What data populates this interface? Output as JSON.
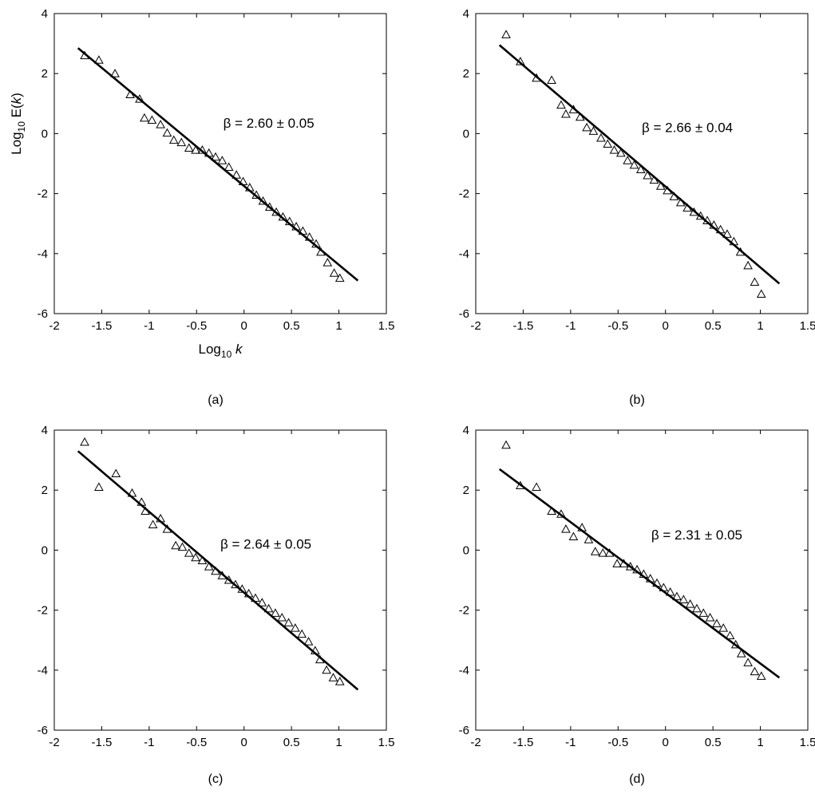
{
  "chart_data": [
    {
      "type": "scatter",
      "panel_label": "(a)",
      "annotation": "β = 2.60 ± 0.05",
      "xlabel": "Log10 k",
      "ylabel": "Log10 E(k)",
      "xlim": [
        -2,
        1.5
      ],
      "ylim": [
        -6,
        4
      ],
      "xticks": [
        "-2",
        "-1.5",
        "-1",
        "-0.5",
        "0",
        "0.5",
        "1",
        "1.5"
      ],
      "yticks": [
        "-6",
        "-4",
        "-2",
        "0",
        "2",
        "4"
      ],
      "grid": false,
      "fit_line": {
        "x": [
          -1.75,
          1.2
        ],
        "y": [
          2.85,
          -4.9
        ]
      },
      "points": {
        "x": [
          -1.68,
          -1.53,
          -1.36,
          -1.2,
          -1.1,
          -1.05,
          -0.97,
          -0.88,
          -0.81,
          -0.74,
          -0.66,
          -0.58,
          -0.51,
          -0.44,
          -0.37,
          -0.3,
          -0.23,
          -0.16,
          -0.08,
          -0.01,
          0.06,
          0.13,
          0.2,
          0.27,
          0.34,
          0.41,
          0.48,
          0.55,
          0.62,
          0.69,
          0.76,
          0.81,
          0.88,
          0.95,
          1.01
        ],
        "y": [
          2.6,
          2.45,
          2.0,
          1.3,
          1.15,
          0.52,
          0.45,
          0.3,
          0.02,
          -0.22,
          -0.3,
          -0.48,
          -0.55,
          -0.55,
          -0.65,
          -0.78,
          -0.9,
          -1.12,
          -1.38,
          -1.6,
          -1.8,
          -2.05,
          -2.25,
          -2.45,
          -2.62,
          -2.78,
          -2.93,
          -3.1,
          -3.25,
          -3.45,
          -3.68,
          -3.95,
          -4.3,
          -4.65,
          -4.82
        ]
      }
    },
    {
      "type": "scatter",
      "panel_label": "(b)",
      "annotation": "β = 2.66 ± 0.04",
      "xlabel": "",
      "ylabel": "",
      "xlim": [
        -2,
        1.5
      ],
      "ylim": [
        -6,
        4
      ],
      "xticks": [
        "-2",
        "-1.5",
        "-1",
        "-0.5",
        "0",
        "0.5",
        "1",
        "1.5"
      ],
      "yticks": [
        "-6",
        "-4",
        "-2",
        "0",
        "2",
        "4"
      ],
      "grid": false,
      "fit_line": {
        "x": [
          -1.75,
          1.2
        ],
        "y": [
          2.95,
          -5.0
        ]
      },
      "points": {
        "x": [
          -1.68,
          -1.53,
          -1.36,
          -1.2,
          -1.1,
          -1.05,
          -0.97,
          -0.9,
          -0.83,
          -0.76,
          -0.68,
          -0.61,
          -0.54,
          -0.47,
          -0.4,
          -0.33,
          -0.26,
          -0.19,
          -0.12,
          -0.05,
          0.02,
          0.09,
          0.16,
          0.23,
          0.3,
          0.37,
          0.44,
          0.51,
          0.58,
          0.65,
          0.72,
          0.79,
          0.87,
          0.94,
          1.01
        ],
        "y": [
          3.3,
          2.4,
          1.85,
          1.78,
          0.95,
          0.65,
          0.8,
          0.55,
          0.2,
          0.08,
          -0.15,
          -0.35,
          -0.55,
          -0.65,
          -0.9,
          -1.05,
          -1.2,
          -1.4,
          -1.55,
          -1.75,
          -1.9,
          -2.1,
          -2.3,
          -2.48,
          -2.62,
          -2.75,
          -2.9,
          -3.05,
          -3.2,
          -3.35,
          -3.6,
          -3.95,
          -4.4,
          -4.95,
          -5.35
        ]
      }
    },
    {
      "type": "scatter",
      "panel_label": "(c)",
      "annotation": "β = 2.64 ± 0.05",
      "xlabel": "",
      "ylabel": "",
      "xlim": [
        -2,
        1.5
      ],
      "ylim": [
        -6,
        4
      ],
      "xticks": [
        "-2",
        "-1.5",
        "-1",
        "-0.5",
        "0",
        "0.5",
        "1",
        "1.5"
      ],
      "yticks": [
        "-6",
        "-4",
        "-2",
        "0",
        "2",
        "4"
      ],
      "grid": false,
      "fit_line": {
        "x": [
          -1.75,
          1.2
        ],
        "y": [
          3.3,
          -4.65
        ]
      },
      "points": {
        "x": [
          -1.68,
          -1.53,
          -1.35,
          -1.18,
          -1.08,
          -1.04,
          -0.96,
          -0.88,
          -0.81,
          -0.72,
          -0.65,
          -0.58,
          -0.51,
          -0.44,
          -0.37,
          -0.3,
          -0.23,
          -0.16,
          -0.09,
          -0.02,
          0.05,
          0.12,
          0.19,
          0.26,
          0.33,
          0.4,
          0.47,
          0.54,
          0.61,
          0.68,
          0.75,
          0.8,
          0.87,
          0.94,
          1.01
        ],
        "y": [
          3.6,
          2.1,
          2.55,
          1.9,
          1.6,
          1.3,
          0.85,
          1.05,
          0.7,
          0.15,
          0.1,
          -0.1,
          -0.25,
          -0.35,
          -0.55,
          -0.7,
          -0.85,
          -1.0,
          -1.15,
          -1.3,
          -1.45,
          -1.6,
          -1.75,
          -1.95,
          -2.1,
          -2.25,
          -2.42,
          -2.6,
          -2.8,
          -3.05,
          -3.35,
          -3.65,
          -4.0,
          -4.25,
          -4.38
        ]
      }
    },
    {
      "type": "scatter",
      "panel_label": "(d)",
      "annotation": "β = 2.31 ± 0.05",
      "xlabel": "",
      "ylabel": "",
      "xlim": [
        -2,
        1.5
      ],
      "ylim": [
        -6,
        4
      ],
      "xticks": [
        "-2",
        "-1.5",
        "-1",
        "-0.5",
        "0",
        "0.5",
        "1",
        "1.5"
      ],
      "yticks": [
        "-6",
        "-4",
        "-2",
        "0",
        "2",
        "4"
      ],
      "grid": false,
      "fit_line": {
        "x": [
          -1.75,
          1.2
        ],
        "y": [
          2.7,
          -4.25
        ]
      },
      "points": {
        "x": [
          -1.68,
          -1.53,
          -1.36,
          -1.2,
          -1.1,
          -1.05,
          -0.97,
          -0.88,
          -0.81,
          -0.74,
          -0.66,
          -0.59,
          -0.51,
          -0.44,
          -0.37,
          -0.3,
          -0.23,
          -0.16,
          -0.09,
          -0.02,
          0.05,
          0.12,
          0.19,
          0.26,
          0.33,
          0.4,
          0.47,
          0.54,
          0.61,
          0.68,
          0.74,
          0.8,
          0.87,
          0.94,
          1.01
        ],
        "y": [
          3.5,
          2.15,
          2.1,
          1.3,
          1.2,
          0.7,
          0.45,
          0.75,
          0.35,
          -0.05,
          -0.1,
          -0.1,
          -0.45,
          -0.45,
          -0.55,
          -0.65,
          -0.8,
          -0.95,
          -1.1,
          -1.25,
          -1.4,
          -1.55,
          -1.65,
          -1.8,
          -1.95,
          -2.1,
          -2.25,
          -2.45,
          -2.6,
          -2.85,
          -3.15,
          -3.45,
          -3.75,
          -4.05,
          -4.2
        ]
      }
    }
  ]
}
